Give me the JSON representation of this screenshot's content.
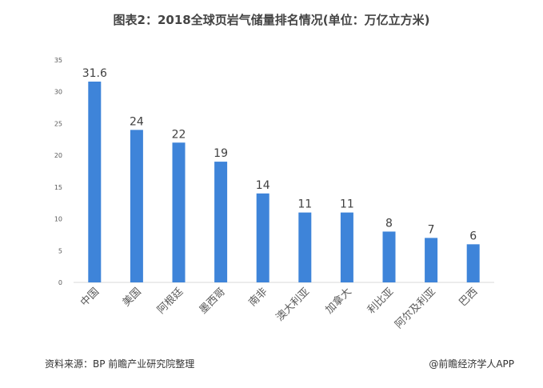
{
  "title": "图表2：2018全球页岩气储量排名情况(单位：万亿立方米)",
  "footer": {
    "source": "资料来源：BP 前瞻产业研究院整理",
    "credit": "@前瞻经济学人APP"
  },
  "colors": {
    "bar": "#3E84D9",
    "axis": "#D9D9D9",
    "text": "#595959"
  },
  "chart_data": {
    "type": "bar",
    "categories": [
      "中国",
      "美国",
      "阿根廷",
      "墨西哥",
      "南非",
      "澳大利亚",
      "加拿大",
      "利比亚",
      "阿尔及利亚",
      "巴西"
    ],
    "values": [
      31.6,
      24,
      22,
      19,
      14,
      11,
      11,
      8,
      7,
      6
    ],
    "data_labels": [
      "31.6",
      "24",
      "22",
      "19",
      "14",
      "11",
      "11",
      "8",
      "7",
      "6"
    ],
    "y_ticks": [
      0,
      5,
      10,
      15,
      20,
      25,
      30,
      35
    ],
    "ylim": [
      0,
      35
    ],
    "title": "",
    "xlabel": "",
    "ylabel": "",
    "grid": false,
    "legend": "none"
  }
}
